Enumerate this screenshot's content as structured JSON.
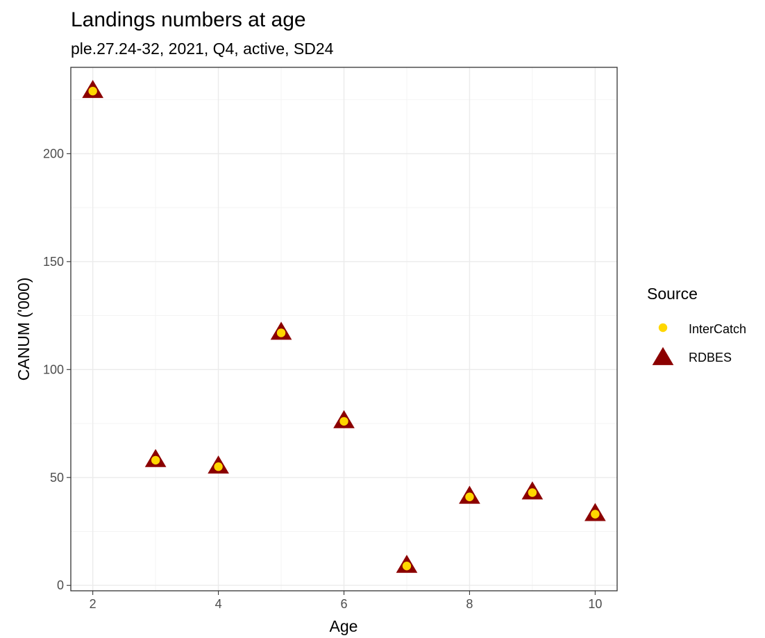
{
  "chart_data": {
    "type": "scatter",
    "title": "Landings numbers at age",
    "subtitle": "ple.27.24-32, 2021, Q4, active, SD24",
    "xlabel": "Age",
    "ylabel": "CANUM ('000)",
    "xlim": [
      1.65,
      10.35
    ],
    "ylim": [
      -2.5,
      240
    ],
    "xticks": [
      2,
      4,
      6,
      8,
      10
    ],
    "yticks": [
      0,
      50,
      100,
      150,
      200
    ],
    "grid": true,
    "legend": {
      "title": "Source",
      "position": "right"
    },
    "series": [
      {
        "name": "RDBES",
        "marker": "triangle",
        "color": "#8b0000",
        "x": [
          2,
          3,
          4,
          5,
          6,
          7,
          8,
          9,
          10
        ],
        "y": [
          229,
          58,
          55,
          117,
          76,
          9,
          41,
          43,
          33
        ]
      },
      {
        "name": "InterCatch",
        "marker": "circle",
        "color": "#ffd700",
        "x": [
          2,
          3,
          4,
          5,
          6,
          7,
          8,
          9,
          10
        ],
        "y": [
          229,
          58,
          55,
          117,
          76,
          9,
          41,
          43,
          33
        ]
      }
    ]
  }
}
